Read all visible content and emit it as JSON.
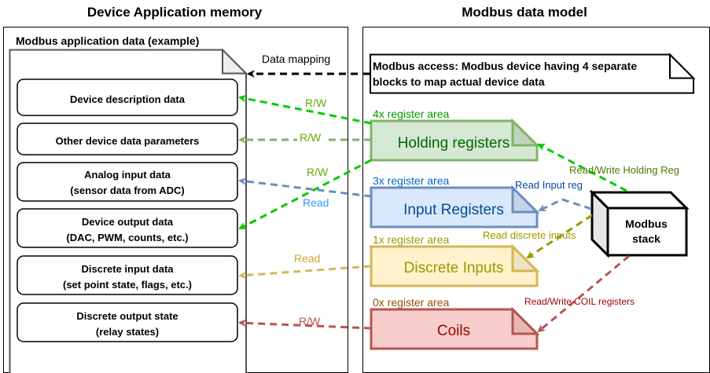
{
  "left": {
    "title": "Device Application memory",
    "subtitle": "Modbus application data (example)",
    "boxes": [
      {
        "line1": "Device description data",
        "line2": ""
      },
      {
        "line1": "Other device data parameters",
        "line2": ""
      },
      {
        "line1": "Analog input data",
        "line2": "(sensor data from ADC)"
      },
      {
        "line1": "Device output data",
        "line2": "(DAC, PWM, counts, etc.)"
      },
      {
        "line1": "Discrete input data",
        "line2": "(set point state, flags, etc.)"
      },
      {
        "line1": "Discrete output state",
        "line2": "(relay states)"
      }
    ]
  },
  "right": {
    "title": "Modbus data model",
    "note_line1": "Modbus access: Modbus device having 4 separate",
    "note_line2": "blocks to map actual device data",
    "blocks": [
      {
        "area": "4x register area",
        "name": "Holding registers",
        "fill": "#d5e8d4",
        "stroke": "#82b366",
        "text": "#006600",
        "area_color": "#009900"
      },
      {
        "area": "3x register area",
        "name": "Input Registers",
        "fill": "#dae8fc",
        "stroke": "#6c8ebf",
        "text": "#004c99",
        "area_color": "#0066cc"
      },
      {
        "area": "1x register area",
        "name": "Discrete Inputs",
        "fill": "#fff2cc",
        "stroke": "#d6b656",
        "text": "#999900",
        "area_color": "#999900"
      },
      {
        "area": "0x register area",
        "name": "Coils",
        "fill": "#f8cecc",
        "stroke": "#b85450",
        "text": "#990000",
        "area_color": "#994c00"
      }
    ],
    "stack_line1": "Modbus",
    "stack_line2": "stack"
  },
  "labels": {
    "data_mapping": "Data mapping",
    "rw1": "R/W",
    "rw2": "R/W",
    "rw3": "R/W",
    "read_analog": "Read",
    "read_discrete": "Read",
    "rw_coils": "R/W",
    "rw_holding": "Read/Write Holding Reg",
    "read_input": "Read Input reg",
    "read_discrete_inputs": "Read discrete inputs",
    "rw_coil_regs": "Read/Write COIL registers"
  }
}
